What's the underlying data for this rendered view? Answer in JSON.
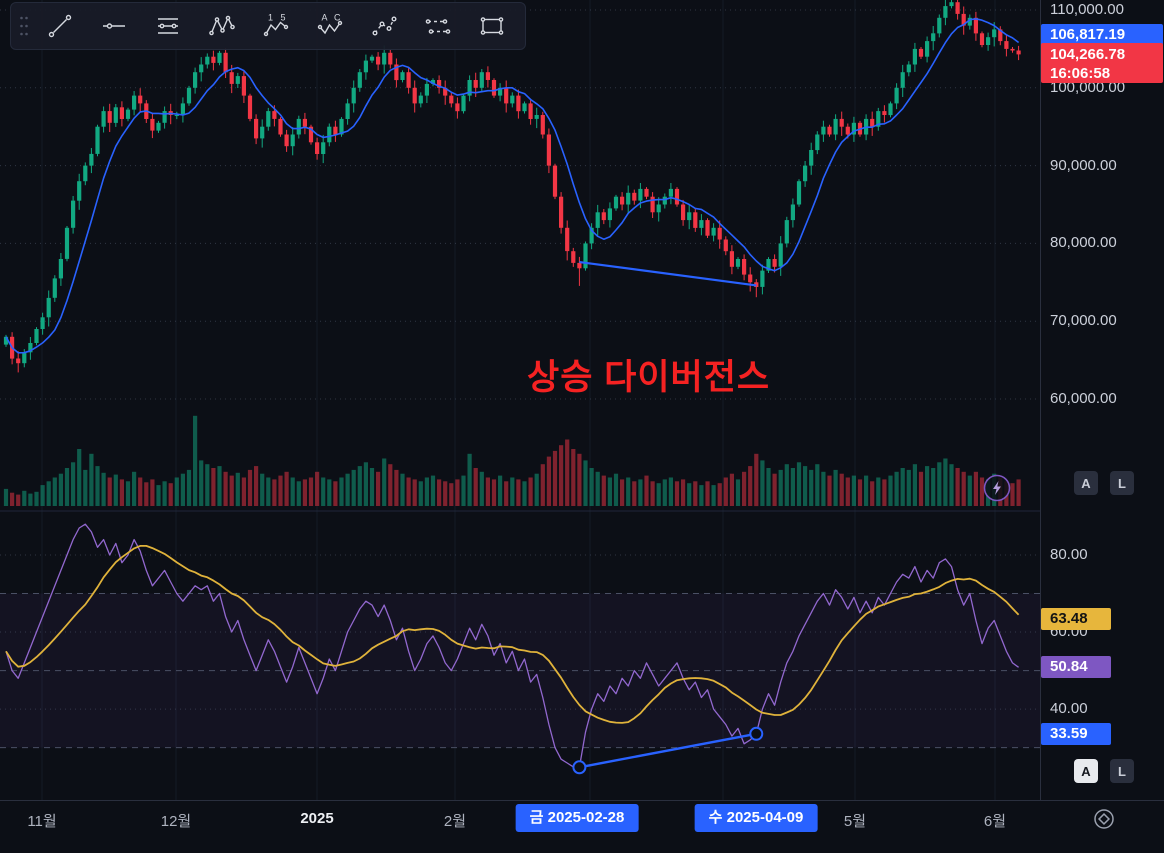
{
  "colors": {
    "background": "#0c0f16",
    "up": "#12a982",
    "down": "#f23645",
    "ma_line": "#2962ff",
    "rsi_line": "#9268cf",
    "rsi_ma_line": "#e0b33b",
    "drawing": "#2962ff",
    "grid": "#151b27",
    "grid_dotted": "#39404f",
    "band_line": "#4a5064",
    "rsi_band_fill": "rgba(126,87,194,0.07)",
    "annotation": "#f52222",
    "badge_blue": "#2962ff",
    "badge_red": "#f23645",
    "badge_yellow": "#e7b63c",
    "badge_purple": "#7e57c2"
  },
  "toolbar": {
    "tools": [
      {
        "name": "trend-line-tool"
      },
      {
        "name": "horizontal-line-tool"
      },
      {
        "name": "fib-retracement-tool"
      },
      {
        "name": "xabcd-pattern-tool"
      },
      {
        "name": "elliott-impulse-wave-tool",
        "labels": [
          "1",
          "5"
        ]
      },
      {
        "name": "elliott-correction-wave-tool",
        "labels": [
          "A",
          "C"
        ]
      },
      {
        "name": "polyline-path-tool"
      },
      {
        "name": "disjoint-channel-tool"
      },
      {
        "name": "rectangle-tool"
      }
    ]
  },
  "price_scale": {
    "labels": [
      "110,000.00",
      "100,000.00",
      "90,000.00",
      "80,000.00",
      "70,000.00",
      "60,000.00"
    ],
    "ma_badge": "106,817.19",
    "last_badge": {
      "price": "104,266.78",
      "time": "16:06:58"
    },
    "buttons": {
      "auto": "A",
      "log": "L"
    }
  },
  "rsi_scale": {
    "labels": [
      "80.00",
      "60.00",
      "40.00"
    ],
    "ma_badge": "63.48",
    "rsi_badge": "50.84",
    "drawing_badge": "33.59",
    "buttons": {
      "auto": "A",
      "log": "L"
    }
  },
  "time_scale": {
    "labels": [
      {
        "text": "11월",
        "x": 42
      },
      {
        "text": "12월",
        "x": 176
      },
      {
        "text": "2025",
        "x": 317,
        "bold": true
      },
      {
        "text": "2월",
        "x": 455
      },
      {
        "text": "5월",
        "x": 855
      },
      {
        "text": "6월",
        "x": 995
      }
    ],
    "badges": [
      {
        "text": "금 2025-02-28",
        "x": 577
      },
      {
        "text": "수 2025-04-09",
        "x": 756
      }
    ]
  },
  "chart_data": {
    "type": "candlestick",
    "x_axis": {
      "month_labels": [
        "11월",
        "12월",
        "2025",
        "2월",
        "5월",
        "6월"
      ],
      "highlight_dates": [
        "금 2025-02-28",
        "수 2025-04-09"
      ],
      "grid_x": [
        42,
        176,
        317,
        455,
        590,
        723,
        855,
        995
      ]
    },
    "price_pane": {
      "ylim_k": [
        60,
        112
      ],
      "gridlines_k": [
        110,
        100,
        90,
        80,
        70,
        60
      ],
      "ma_period": 8,
      "ma_last": "106,817.19",
      "last_price": "104,266.78",
      "last_time": "16:06:58",
      "closes_k": [
        68,
        65.2,
        64.6,
        66,
        67.2,
        69,
        70.5,
        73,
        75.5,
        78,
        82,
        85.5,
        88,
        90,
        91.5,
        95,
        97,
        95.5,
        97.5,
        96,
        97.2,
        99,
        98,
        96,
        94.5,
        95.5,
        97,
        96.5,
        96.5,
        98,
        100,
        102,
        103,
        104,
        103.2,
        104.5,
        102,
        100.5,
        101.5,
        99,
        96,
        93.5,
        95,
        97,
        96,
        94,
        92.5,
        94,
        96,
        95,
        93,
        91.5,
        93,
        95,
        94,
        96,
        98,
        100,
        102,
        103.5,
        104,
        103,
        104.5,
        103,
        101,
        102,
        100,
        98,
        99,
        100.5,
        101,
        100,
        99,
        98,
        97,
        99,
        101,
        100,
        102,
        101,
        99,
        100,
        98,
        99,
        97,
        98,
        96,
        96.5,
        94,
        90,
        86,
        82,
        79,
        77.5,
        76.8,
        80,
        82,
        84,
        83,
        84.5,
        86,
        85,
        86.5,
        85.5,
        87,
        86,
        84,
        85,
        86,
        87,
        85,
        83,
        84,
        82,
        83,
        81,
        82,
        80.5,
        79,
        77,
        78,
        76,
        75,
        74.4,
        76.5,
        78,
        77,
        80,
        83,
        85,
        88,
        90,
        92,
        94,
        95,
        94,
        96,
        95,
        94,
        95.5,
        94,
        96,
        95,
        97,
        96.5,
        98,
        100,
        102,
        103,
        105,
        104,
        106,
        107,
        109,
        110.5,
        111,
        109.5,
        108,
        109,
        107,
        105.5,
        106.5,
        107.5,
        106,
        105,
        104.8,
        104.3
      ],
      "volumes": [
        18,
        14,
        12,
        16,
        13,
        15,
        22,
        26,
        30,
        34,
        40,
        46,
        60,
        38,
        55,
        42,
        35,
        30,
        33,
        28,
        26,
        36,
        30,
        25,
        28,
        22,
        26,
        24,
        30,
        34,
        38,
        95,
        48,
        44,
        40,
        42,
        36,
        32,
        35,
        30,
        38,
        42,
        34,
        30,
        28,
        32,
        36,
        30,
        26,
        28,
        30,
        36,
        30,
        28,
        26,
        30,
        34,
        38,
        42,
        46,
        40,
        36,
        50,
        44,
        38,
        34,
        30,
        28,
        26,
        30,
        32,
        28,
        26,
        24,
        28,
        32,
        55,
        40,
        36,
        30,
        28,
        32,
        26,
        30,
        28,
        26,
        30,
        34,
        44,
        52,
        58,
        64,
        70,
        60,
        55,
        48,
        40,
        36,
        32,
        30,
        34,
        28,
        30,
        26,
        28,
        32,
        26,
        24,
        28,
        30,
        26,
        28,
        24,
        26,
        22,
        26,
        22,
        24,
        30,
        34,
        28,
        36,
        42,
        55,
        48,
        40,
        34,
        38,
        44,
        40,
        46,
        42,
        38,
        44,
        36,
        32,
        38,
        34,
        30,
        32,
        28,
        32,
        26,
        30,
        28,
        32,
        36,
        40,
        38,
        44,
        36,
        42,
        40,
        46,
        50,
        44,
        40,
        36,
        32,
        36,
        30,
        28,
        34,
        30,
        26,
        24,
        28
      ],
      "wick_low_boost": {
        "94": 1.3,
        "123": 0.8
      },
      "wick_high_boost": {
        "154": 1.0,
        "155": 1.4
      }
    },
    "rsi_pane": {
      "ylim": [
        18,
        92
      ],
      "gridlines": [
        80,
        60,
        40
      ],
      "band_levels": [
        70,
        50,
        30
      ],
      "ma_period": 14,
      "rsi_last": "50.84",
      "ma_last": "63.48",
      "values": [
        55,
        50,
        48,
        52,
        56,
        60,
        64,
        68,
        72,
        76,
        80,
        84,
        87,
        88,
        86,
        82,
        84,
        80,
        83,
        78,
        80,
        84,
        81,
        76,
        72,
        74,
        76,
        73,
        70,
        68,
        70,
        72,
        71,
        72,
        68,
        70,
        64,
        60,
        63,
        58,
        54,
        50,
        54,
        58,
        55,
        51,
        47,
        51,
        56,
        52,
        48,
        44,
        48,
        53,
        50,
        55,
        60,
        63,
        66,
        68,
        67,
        64,
        67,
        63,
        58,
        61,
        55,
        50,
        53,
        57,
        59,
        56,
        52,
        50,
        53,
        57,
        61,
        58,
        62,
        59,
        54,
        57,
        52,
        55,
        50,
        53,
        47,
        49,
        43,
        36,
        30,
        27,
        26,
        25,
        24.9,
        34,
        40,
        44,
        42,
        46,
        44,
        48,
        46,
        50,
        48,
        52,
        49,
        46,
        48,
        50,
        52,
        48,
        45,
        47,
        43,
        45,
        40,
        38,
        36,
        33,
        35,
        31,
        32,
        33.6,
        40,
        44,
        41,
        47,
        52,
        55,
        59,
        62,
        65,
        68,
        70,
        67,
        71,
        69,
        66,
        69,
        65,
        68,
        65,
        69,
        67,
        70,
        73,
        75,
        74,
        77,
        73,
        76,
        74,
        78,
        79,
        77,
        71,
        67,
        70,
        63,
        57,
        61,
        63,
        59,
        55,
        52,
        50.84
      ]
    },
    "drawings": {
      "price_trendline": {
        "from_i": 94,
        "from_k": 77.6,
        "to_i": 123,
        "to_k": 74.6
      },
      "rsi_trendline": {
        "from_i": 94,
        "from_v": 24.9,
        "to_i": 123,
        "to_v": 33.59,
        "label": "33.59"
      },
      "annotation": {
        "text": "상승 다이버전스"
      }
    }
  }
}
